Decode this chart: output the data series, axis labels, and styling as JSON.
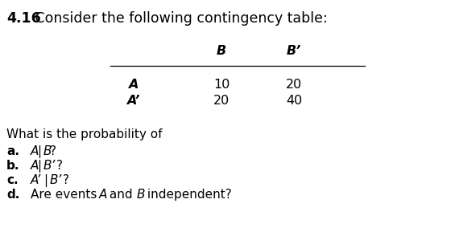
{
  "title_bold": "4.16",
  "title_normal": " Consider the following contingency table:",
  "table_bg_color": "#e8e8e8",
  "col_headers": [
    "B",
    "B’"
  ],
  "row_labels": [
    "A",
    "A’"
  ],
  "table_data": [
    [
      "10",
      "20"
    ],
    [
      "20",
      "40"
    ]
  ],
  "questions_intro": "What is the probability of",
  "q_labels": [
    "a.",
    "b.",
    "c.",
    "d."
  ],
  "q_texts": [
    [
      [
        "italic",
        "A"
      ],
      [
        "normal",
        "|"
      ],
      [
        "italic",
        "B"
      ],
      [
        "normal",
        "?"
      ]
    ],
    [
      [
        "italic",
        "A"
      ],
      [
        "normal",
        "|"
      ],
      [
        "italic",
        "B’"
      ],
      [
        "normal",
        "?"
      ]
    ],
    [
      [
        "italic",
        "A’"
      ],
      [
        "normal",
        "|"
      ],
      [
        "italic",
        "B’"
      ],
      [
        "normal",
        "?"
      ]
    ],
    [
      [
        "normal",
        "Are events "
      ],
      [
        "italic",
        "A"
      ],
      [
        "normal",
        " and "
      ],
      [
        "italic",
        "B"
      ],
      [
        "normal",
        " independent?"
      ]
    ]
  ],
  "bg_color": "#ffffff",
  "text_color": "#000000",
  "table_text_color": "#000000",
  "fs_title": 12.5,
  "fs_table": 11.5,
  "fs_body": 11.0
}
